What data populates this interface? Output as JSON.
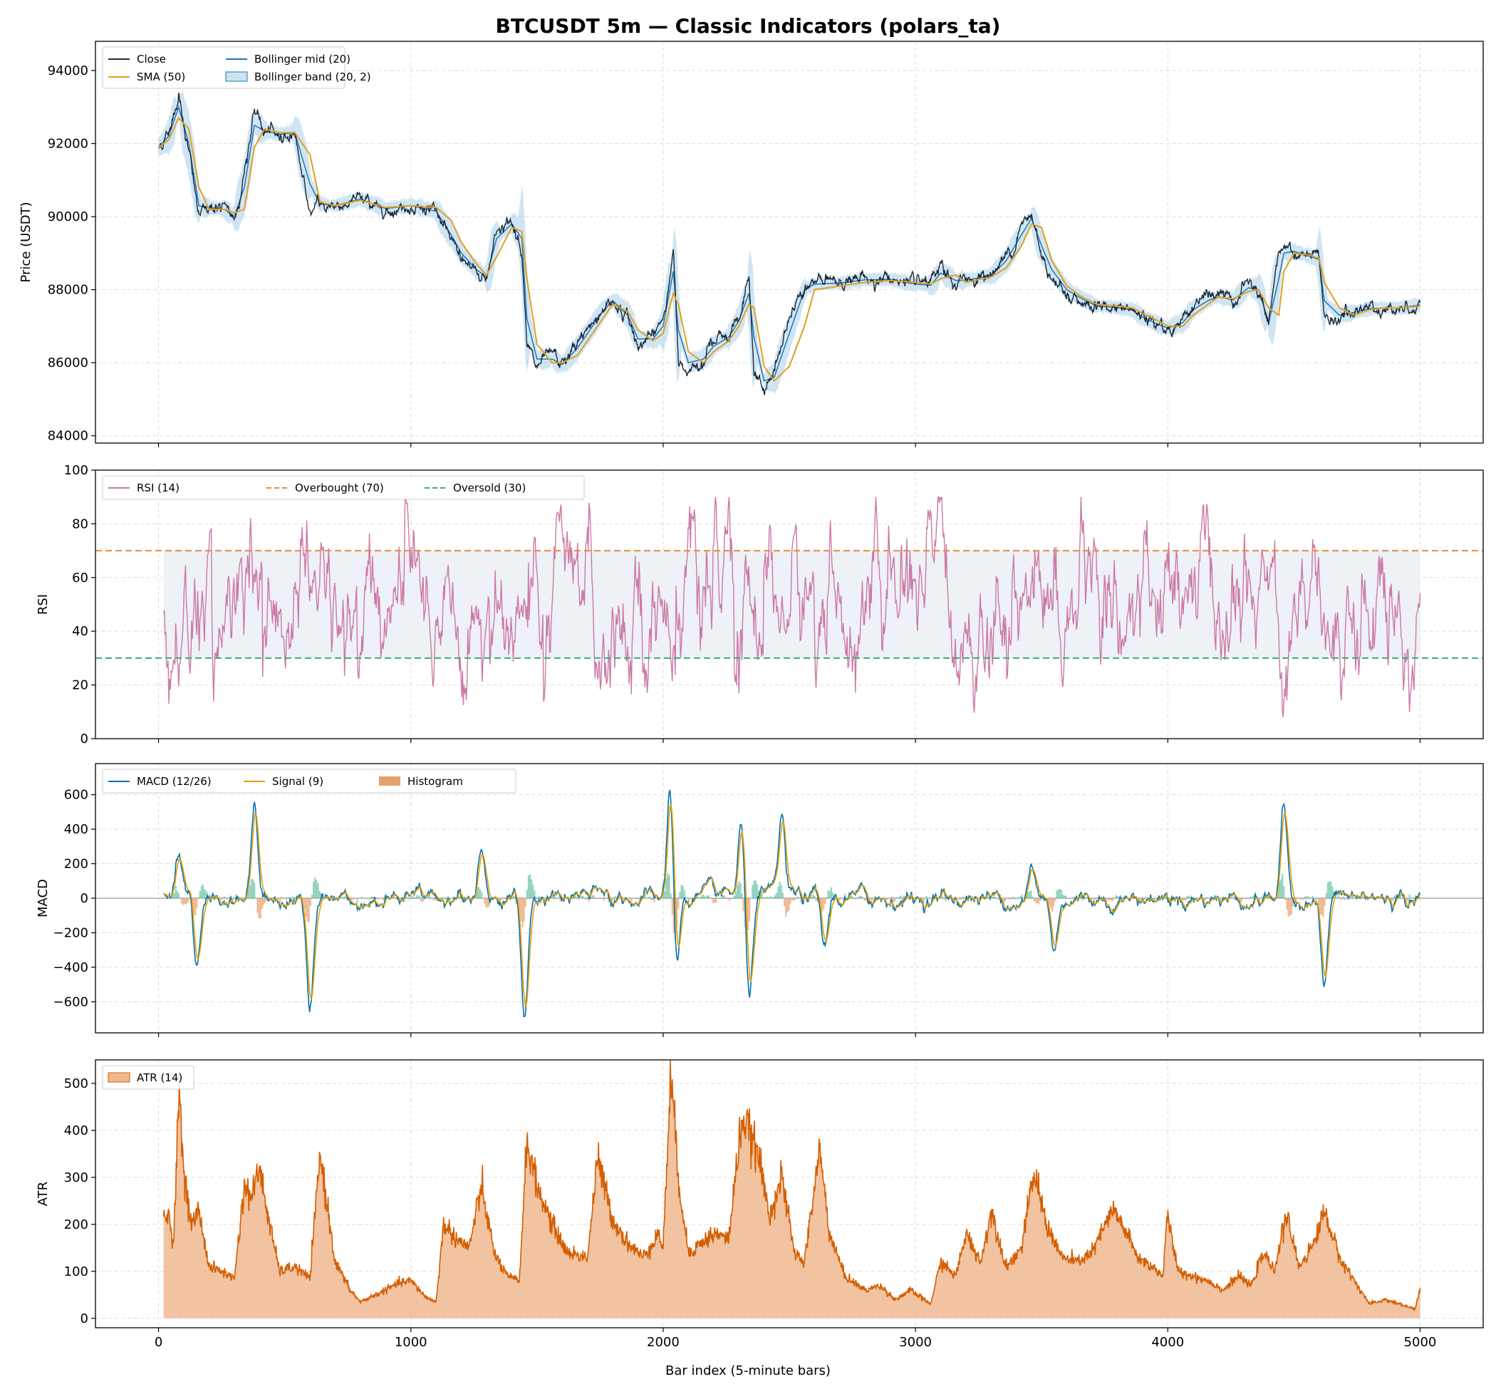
{
  "title": "BTCUSDT 5m — Classic Indicators (polars_ta)",
  "xlabel": "Bar index (5-minute bars)",
  "colors": {
    "close": "#1b2a3a",
    "sma": "#e0a021",
    "bb_mid": "#1f77b4",
    "bb_band": "#a9d0ea",
    "rsi": "#cc79a7",
    "overbought": "#e88a3f",
    "oversold": "#3aaa80",
    "rsi_zone": "#eef1f5",
    "macd": "#0072b2",
    "signal": "#e69f00",
    "hist_pos": "#66c2a5",
    "hist_neg": "#e6a06e",
    "atr_line": "#d55e00",
    "atr_fill": "#efb890",
    "grid": "#dddddd",
    "zero": "#999999"
  },
  "chart_data": [
    {
      "type": "line",
      "panel": "price",
      "ylabel": "Price (USDT)",
      "xlim": [
        -250,
        5250
      ],
      "ylim": [
        83800,
        94800
      ],
      "xticks": [
        0,
        1000,
        2000,
        3000,
        4000,
        5000
      ],
      "yticks": [
        84000,
        86000,
        88000,
        90000,
        92000,
        94000
      ],
      "grid": true,
      "legend_location": "upper-left",
      "legend": [
        "Close",
        "SMA (50)",
        "Bollinger mid (20)",
        "Bollinger band (20, 2)"
      ],
      "x": [
        0,
        40,
        80,
        120,
        160,
        200,
        260,
        300,
        340,
        380,
        420,
        480,
        540,
        600,
        640,
        700,
        800,
        900,
        1000,
        1100,
        1160,
        1200,
        1260,
        1300,
        1340,
        1400,
        1440,
        1460,
        1500,
        1560,
        1600,
        1660,
        1700,
        1760,
        1800,
        1860,
        1900,
        1960,
        2000,
        2040,
        2060,
        2100,
        2160,
        2200,
        2260,
        2300,
        2340,
        2360,
        2400,
        2440,
        2500,
        2560,
        2600,
        2700,
        2800,
        2900,
        3000,
        3060,
        3100,
        3160,
        3200,
        3300,
        3360,
        3420,
        3460,
        3500,
        3540,
        3600,
        3660,
        3720,
        3800,
        3860,
        3900,
        3960,
        4000,
        4060,
        4100,
        4160,
        4200,
        4260,
        4320,
        4360,
        4400,
        4440,
        4460,
        4500,
        4560,
        4600,
        4620,
        4680,
        4740,
        4800,
        4860,
        4920,
        5000
      ],
      "series": [
        {
          "name": "Close",
          "values": [
            91900,
            92300,
            93400,
            91800,
            90000,
            90300,
            90200,
            89900,
            91200,
            92900,
            92300,
            92200,
            92300,
            90100,
            90300,
            90300,
            90500,
            90200,
            90300,
            90100,
            89300,
            88900,
            88500,
            88300,
            89700,
            89800,
            89200,
            86500,
            85800,
            86200,
            85900,
            86500,
            86900,
            87500,
            87700,
            87200,
            86500,
            86700,
            87200,
            89000,
            86000,
            85900,
            86200,
            86600,
            86800,
            87300,
            88200,
            85600,
            85300,
            85700,
            87200,
            88200,
            88200,
            88200,
            88300,
            88300,
            88100,
            88100,
            88600,
            88100,
            88300,
            88400,
            88900,
            89700,
            90000,
            89000,
            88400,
            87900,
            87700,
            87500,
            87500,
            87400,
            87200,
            87000,
            86900,
            87200,
            87600,
            87800,
            87800,
            87700,
            88200,
            87900,
            86800,
            89000,
            89200,
            89000,
            88900,
            88800,
            87200,
            87200,
            87400,
            87500,
            87500,
            87500,
            87600
          ]
        },
        {
          "name": "SMA (50)",
          "values": [
            91900,
            92100,
            92700,
            92400,
            90800,
            90200,
            90200,
            90100,
            90200,
            91900,
            92400,
            92300,
            92300,
            91700,
            90400,
            90300,
            90450,
            90250,
            90300,
            90250,
            89900,
            89300,
            88700,
            88400,
            88900,
            89700,
            89600,
            88300,
            86500,
            86000,
            86000,
            86200,
            86600,
            87200,
            87600,
            87400,
            86900,
            86600,
            86800,
            87900,
            87600,
            86300,
            86000,
            86300,
            86600,
            87000,
            87600,
            87500,
            85900,
            85500,
            85900,
            87000,
            88000,
            88100,
            88200,
            88250,
            88200,
            88150,
            88300,
            88400,
            88200,
            88350,
            88600,
            89200,
            89800,
            89700,
            88800,
            88100,
            87800,
            87600,
            87550,
            87500,
            87350,
            87150,
            87000,
            87000,
            87300,
            87600,
            87800,
            87750,
            87950,
            88000,
            87500,
            87300,
            88500,
            89000,
            88950,
            88850,
            88200,
            87500,
            87300,
            87450,
            87500,
            87500,
            87550
          ]
        },
        {
          "name": "Bollinger mid (20)",
          "values": [
            91900,
            92200,
            93000,
            92000,
            90300,
            90250,
            90200,
            90000,
            90800,
            92500,
            92350,
            92250,
            92300,
            90900,
            90350,
            90300,
            90480,
            90220,
            90300,
            90150,
            89500,
            89000,
            88550,
            88350,
            89400,
            89800,
            89400,
            87200,
            86100,
            86100,
            85950,
            86400,
            86800,
            87400,
            87700,
            87300,
            86650,
            86650,
            87000,
            88500,
            86900,
            86000,
            86100,
            86450,
            86700,
            87150,
            87900,
            86700,
            85500,
            85600,
            86800,
            88000,
            88150,
            88180,
            88270,
            88280,
            88150,
            88120,
            88450,
            88250,
            88260,
            88380,
            88800,
            89500,
            89950,
            89200,
            88550,
            88000,
            87750,
            87550,
            87510,
            87440,
            87250,
            87050,
            86950,
            87100,
            87450,
            87700,
            87800,
            87720,
            88050,
            88000,
            87100,
            88300,
            89000,
            89050,
            88920,
            88820,
            87700,
            87300,
            87380,
            87480,
            87500,
            87500,
            87580
          ]
        }
      ]
    },
    {
      "type": "line",
      "panel": "rsi",
      "ylabel": "RSI",
      "xlim": [
        -250,
        5250
      ],
      "ylim": [
        0,
        100
      ],
      "xticks": [
        0,
        1000,
        2000,
        3000,
        4000,
        5000
      ],
      "yticks": [
        0,
        20,
        40,
        60,
        80,
        100
      ],
      "grid": true,
      "legend_location": "upper-left",
      "legend": [
        "RSI (14)",
        "Overbought (70)",
        "Oversold (30)"
      ],
      "overbought": 70,
      "oversold": 30
    },
    {
      "type": "line",
      "panel": "macd",
      "ylabel": "MACD",
      "xlim": [
        -250,
        5250
      ],
      "ylim": [
        -780,
        780
      ],
      "xticks": [
        0,
        1000,
        2000,
        3000,
        4000,
        5000
      ],
      "yticks": [
        -600,
        -400,
        -200,
        0,
        200,
        400,
        600
      ],
      "grid": true,
      "legend_location": "upper-left",
      "legend": [
        "MACD (12/26)",
        "Signal (9)",
        "Histogram"
      ],
      "spikes": [
        [
          80,
          300
        ],
        [
          150,
          -420
        ],
        [
          380,
          590
        ],
        [
          600,
          -620
        ],
        [
          1280,
          350
        ],
        [
          1450,
          -720
        ],
        [
          2030,
          730
        ],
        [
          2050,
          -500
        ],
        [
          2310,
          440
        ],
        [
          2340,
          -620
        ],
        [
          2470,
          450
        ],
        [
          2640,
          -300
        ],
        [
          3460,
          160
        ],
        [
          3550,
          -320
        ],
        [
          4460,
          510
        ],
        [
          4620,
          -510
        ]
      ]
    },
    {
      "type": "area",
      "panel": "atr",
      "ylabel": "ATR",
      "xlim": [
        -250,
        5250
      ],
      "ylim": [
        -20,
        550
      ],
      "xticks": [
        0,
        1000,
        2000,
        3000,
        4000,
        5000
      ],
      "yticks": [
        0,
        100,
        200,
        300,
        400,
        500
      ],
      "xticklabels": [
        "0",
        "1000",
        "2000",
        "3000",
        "4000",
        "5000"
      ],
      "grid": true,
      "legend_location": "upper-left",
      "legend": [
        "ATR (14)"
      ],
      "x": [
        20,
        40,
        60,
        75,
        80,
        100,
        130,
        160,
        200,
        250,
        300,
        340,
        370,
        400,
        440,
        480,
        540,
        600,
        640,
        700,
        760,
        800,
        880,
        950,
        1000,
        1060,
        1100,
        1130,
        1180,
        1230,
        1280,
        1330,
        1380,
        1430,
        1460,
        1500,
        1560,
        1620,
        1700,
        1740,
        1800,
        1860,
        1920,
        1980,
        2000,
        2030,
        2060,
        2100,
        2200,
        2260,
        2310,
        2340,
        2380,
        2420,
        2470,
        2520,
        2560,
        2620,
        2660,
        2720,
        2800,
        2860,
        2920,
        2980,
        3060,
        3100,
        3160,
        3200,
        3260,
        3300,
        3360,
        3420,
        3470,
        3520,
        3580,
        3640,
        3700,
        3780,
        3820,
        3880,
        3940,
        3980,
        4000,
        4040,
        4100,
        4160,
        4220,
        4280,
        4330,
        4380,
        4420,
        4470,
        4520,
        4580,
        4620,
        4680,
        4740,
        4800,
        4860,
        4920,
        4980,
        5000
      ],
      "values": [
        210,
        220,
        160,
        400,
        520,
        300,
        200,
        230,
        110,
        100,
        85,
        280,
        260,
        320,
        200,
        100,
        110,
        85,
        350,
        120,
        60,
        35,
        55,
        75,
        80,
        45,
        35,
        200,
        170,
        150,
        280,
        140,
        90,
        80,
        380,
        280,
        200,
        140,
        130,
        340,
        210,
        160,
        130,
        180,
        150,
        520,
        300,
        140,
        180,
        170,
        420,
        400,
        340,
        220,
        300,
        140,
        120,
        360,
        180,
        90,
        60,
        70,
        40,
        60,
        30,
        120,
        90,
        180,
        120,
        230,
        110,
        150,
        310,
        200,
        130,
        120,
        140,
        230,
        200,
        130,
        110,
        90,
        220,
        100,
        90,
        80,
        60,
        90,
        70,
        140,
        100,
        220,
        110,
        160,
        230,
        130,
        80,
        30,
        40,
        30,
        20,
        60
      ]
    }
  ]
}
